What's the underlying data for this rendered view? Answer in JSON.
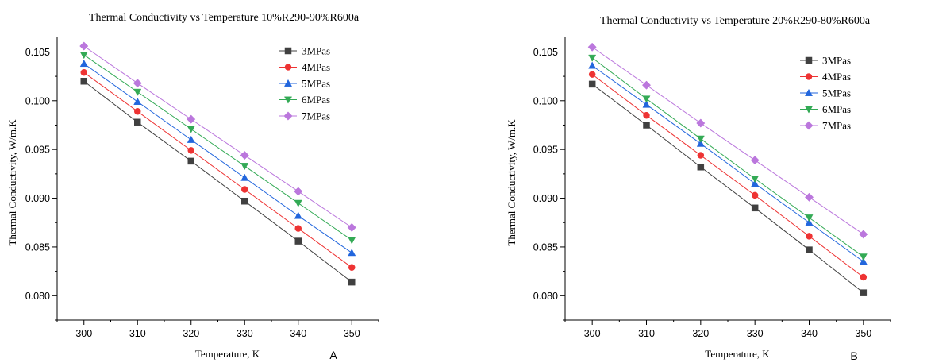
{
  "chart_data": [
    {
      "type": "line",
      "panel_label": "A",
      "title": "Thermal Conductivity vs Temperature 10%R290-90%R600a",
      "xlabel": "Temperature, K",
      "ylabel": "Thermal Conductivity, W/m.K",
      "x": [
        300,
        310,
        320,
        330,
        340,
        350
      ],
      "xticks": [
        "300",
        "310",
        "320",
        "330",
        "340",
        "350"
      ],
      "yticks": [
        "0.080",
        "0.085",
        "0.090",
        "0.095",
        "0.100",
        "0.105"
      ],
      "xlim": [
        295,
        355
      ],
      "ylim": [
        0.0775,
        0.1065
      ],
      "grid": false,
      "legend_position": "top-right",
      "series": [
        {
          "name": "3MPas",
          "color": "#404040",
          "marker": "square",
          "values": [
            0.102,
            0.0978,
            0.0938,
            0.0897,
            0.0856,
            0.0814
          ]
        },
        {
          "name": "4MPas",
          "color": "#ee3333",
          "marker": "circle",
          "values": [
            0.1029,
            0.0989,
            0.0949,
            0.0909,
            0.0869,
            0.0829
          ]
        },
        {
          "name": "5MPas",
          "color": "#2266dd",
          "marker": "triangle-up",
          "values": [
            0.1038,
            0.0999,
            0.096,
            0.0921,
            0.0882,
            0.0844
          ]
        },
        {
          "name": "6MPas",
          "color": "#33aa55",
          "marker": "triangle-down",
          "values": [
            0.1047,
            0.1009,
            0.0971,
            0.0933,
            0.0895,
            0.0857
          ]
        },
        {
          "name": "7MPas",
          "color": "#bb77dd",
          "marker": "diamond",
          "values": [
            0.1056,
            0.1018,
            0.0981,
            0.0944,
            0.0907,
            0.087
          ]
        }
      ]
    },
    {
      "type": "line",
      "panel_label": "B",
      "title": "Thermal Conductivity vs Temperature 20%R290-80%R600a",
      "xlabel": "Temperature, K",
      "ylabel": "Thermal Conductivity, W/m.K",
      "x": [
        300,
        310,
        320,
        330,
        340,
        350
      ],
      "xticks": [
        "300",
        "310",
        "320",
        "330",
        "340",
        "350"
      ],
      "yticks": [
        "0.080",
        "0.085",
        "0.090",
        "0.095",
        "0.100",
        "0.105"
      ],
      "xlim": [
        295,
        355
      ],
      "ylim": [
        0.0775,
        0.1065
      ],
      "grid": false,
      "legend_position": "top-right",
      "series": [
        {
          "name": "3MPas",
          "color": "#404040",
          "marker": "square",
          "values": [
            0.1017,
            0.0975,
            0.0932,
            0.089,
            0.0847,
            0.0803
          ]
        },
        {
          "name": "4MPas",
          "color": "#ee3333",
          "marker": "circle",
          "values": [
            0.1027,
            0.0985,
            0.0944,
            0.0903,
            0.0861,
            0.0819
          ]
        },
        {
          "name": "5MPas",
          "color": "#2266dd",
          "marker": "triangle-up",
          "values": [
            0.1036,
            0.0996,
            0.0956,
            0.0915,
            0.0875,
            0.0835
          ]
        },
        {
          "name": "6MPas",
          "color": "#33aa55",
          "marker": "triangle-down",
          "values": [
            0.1044,
            0.1002,
            0.0961,
            0.092,
            0.088,
            0.084
          ]
        },
        {
          "name": "7MPas",
          "color": "#bb77dd",
          "marker": "diamond",
          "values": [
            0.1055,
            0.1016,
            0.0977,
            0.0939,
            0.0901,
            0.0863
          ]
        }
      ]
    }
  ]
}
